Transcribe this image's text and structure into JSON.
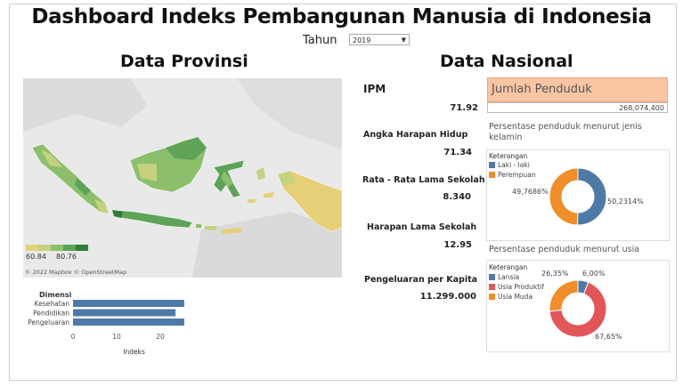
{
  "title": "Dashboard Indeks Pembangunan Manusia di Indonesia",
  "year": {
    "label": "Tahun",
    "selected": "2019"
  },
  "provinsi": {
    "heading": "Data Provinsi",
    "legend": {
      "min": "60.84",
      "max": "80.76",
      "colors": [
        "#e6cf77",
        "#c4d27d",
        "#8cbf6b",
        "#5ea357",
        "#2e7d3a"
      ]
    },
    "attribution": "© 2022 Mapbox © OpenStreetMap"
  },
  "dimensi": {
    "title": "Dimensi",
    "axis_title": "Indeks",
    "ticks": [
      "0",
      "10",
      "20"
    ],
    "color": "#4f7aa8"
  },
  "chart_data": [
    {
      "type": "bar",
      "title": "Dimensi",
      "xlabel": "Indeks",
      "categories": [
        "Kesehatan",
        "Pendidikan",
        "Pengeluaran"
      ],
      "values": [
        25.5,
        23.5,
        25.5
      ],
      "xlim": [
        0,
        30
      ]
    },
    {
      "type": "pie",
      "title": "Persentase penduduk menurut jenis kelamin",
      "categories": [
        "Laki - laki",
        "Perempuan"
      ],
      "values": [
        50.2314,
        49.7686
      ],
      "colors": [
        "#4f7aa8",
        "#f08e2b"
      ]
    },
    {
      "type": "pie",
      "title": "Persentase penduduk menurut usia",
      "categories": [
        "Lansia",
        "Usia Produktif",
        "Usia Muda"
      ],
      "values": [
        6.0,
        67.65,
        26.35
      ],
      "colors": [
        "#4f7aa8",
        "#e15759",
        "#f08e2b"
      ]
    }
  ],
  "nasional": {
    "heading": "Data Nasional",
    "metrics": [
      {
        "label": "IPM",
        "value": "71.92"
      },
      {
        "label": "Angka Harapan Hidup",
        "value": "71.34"
      },
      {
        "label": "Rata - Rata Lama Sekolah",
        "value": "8.340"
      },
      {
        "label": "Harapan Lama Sekolah",
        "value": "12.95"
      },
      {
        "label": "Pengeluaran per Kapita",
        "value": "11.299.000"
      }
    ],
    "jumlah_penduduk": {
      "label": "Jumlah Penduduk",
      "value": "268,074,400"
    },
    "gender": {
      "title": "Persentase penduduk menurut jenis kelamin",
      "keterangan": "Keterangan",
      "items": [
        "Laki - laki",
        "Perempuan"
      ],
      "pct_left": "49,7686%",
      "pct_right": "50,2314%"
    },
    "usia": {
      "title": "Persentase penduduk menurut usia",
      "keterangan": "Keterangan",
      "items": [
        "Lansia",
        "Usia Produktif",
        "Usia Muda"
      ],
      "pct_muda": "26,35%",
      "pct_lansia": "6,00%",
      "pct_produktif": "67,65%"
    }
  }
}
